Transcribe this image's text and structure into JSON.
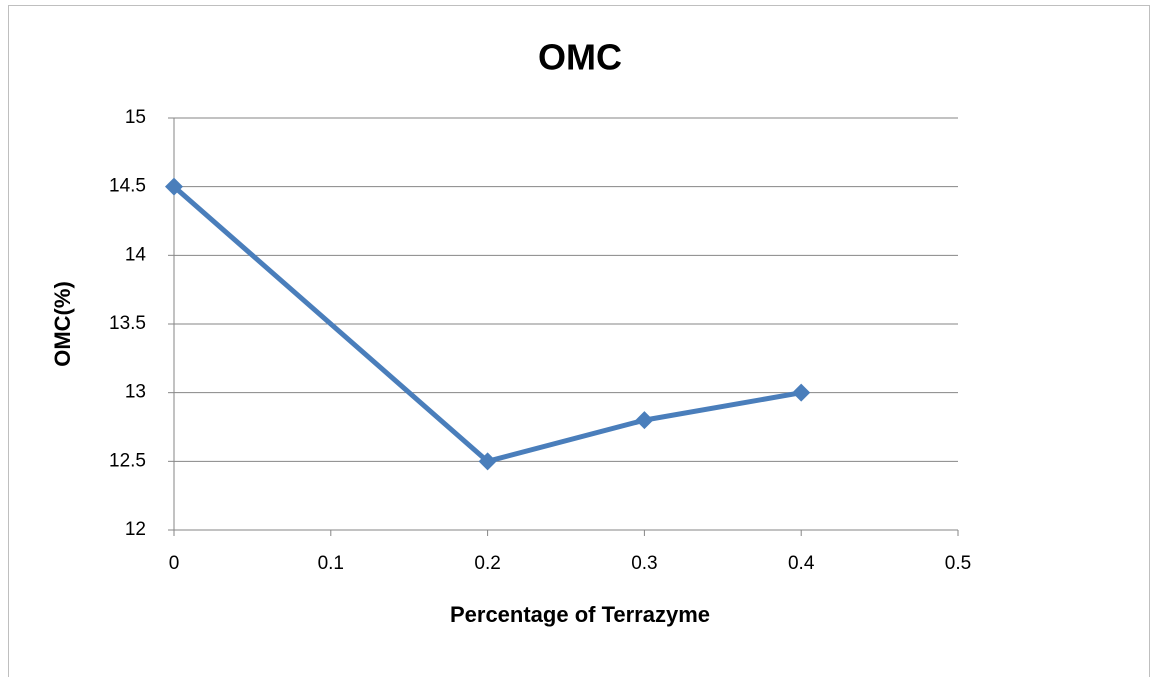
{
  "chart_data": {
    "type": "line",
    "title": "OMC",
    "x_label": "Percentage of Terrazyme",
    "y_label": "OMC(%)",
    "x": [
      0,
      0.2,
      0.3,
      0.4
    ],
    "series": [
      {
        "name": "OMC",
        "color": "#4a7ebb",
        "values": [
          14.5,
          12.5,
          12.8,
          13
        ]
      }
    ],
    "xlim": [
      0,
      0.5
    ],
    "xticks": [
      0,
      0.1,
      0.2,
      0.3,
      0.4,
      0.5
    ],
    "ylim": [
      12,
      15
    ],
    "yticks": [
      12,
      12.5,
      13,
      13.5,
      14,
      14.5,
      15
    ],
    "grid": true
  }
}
